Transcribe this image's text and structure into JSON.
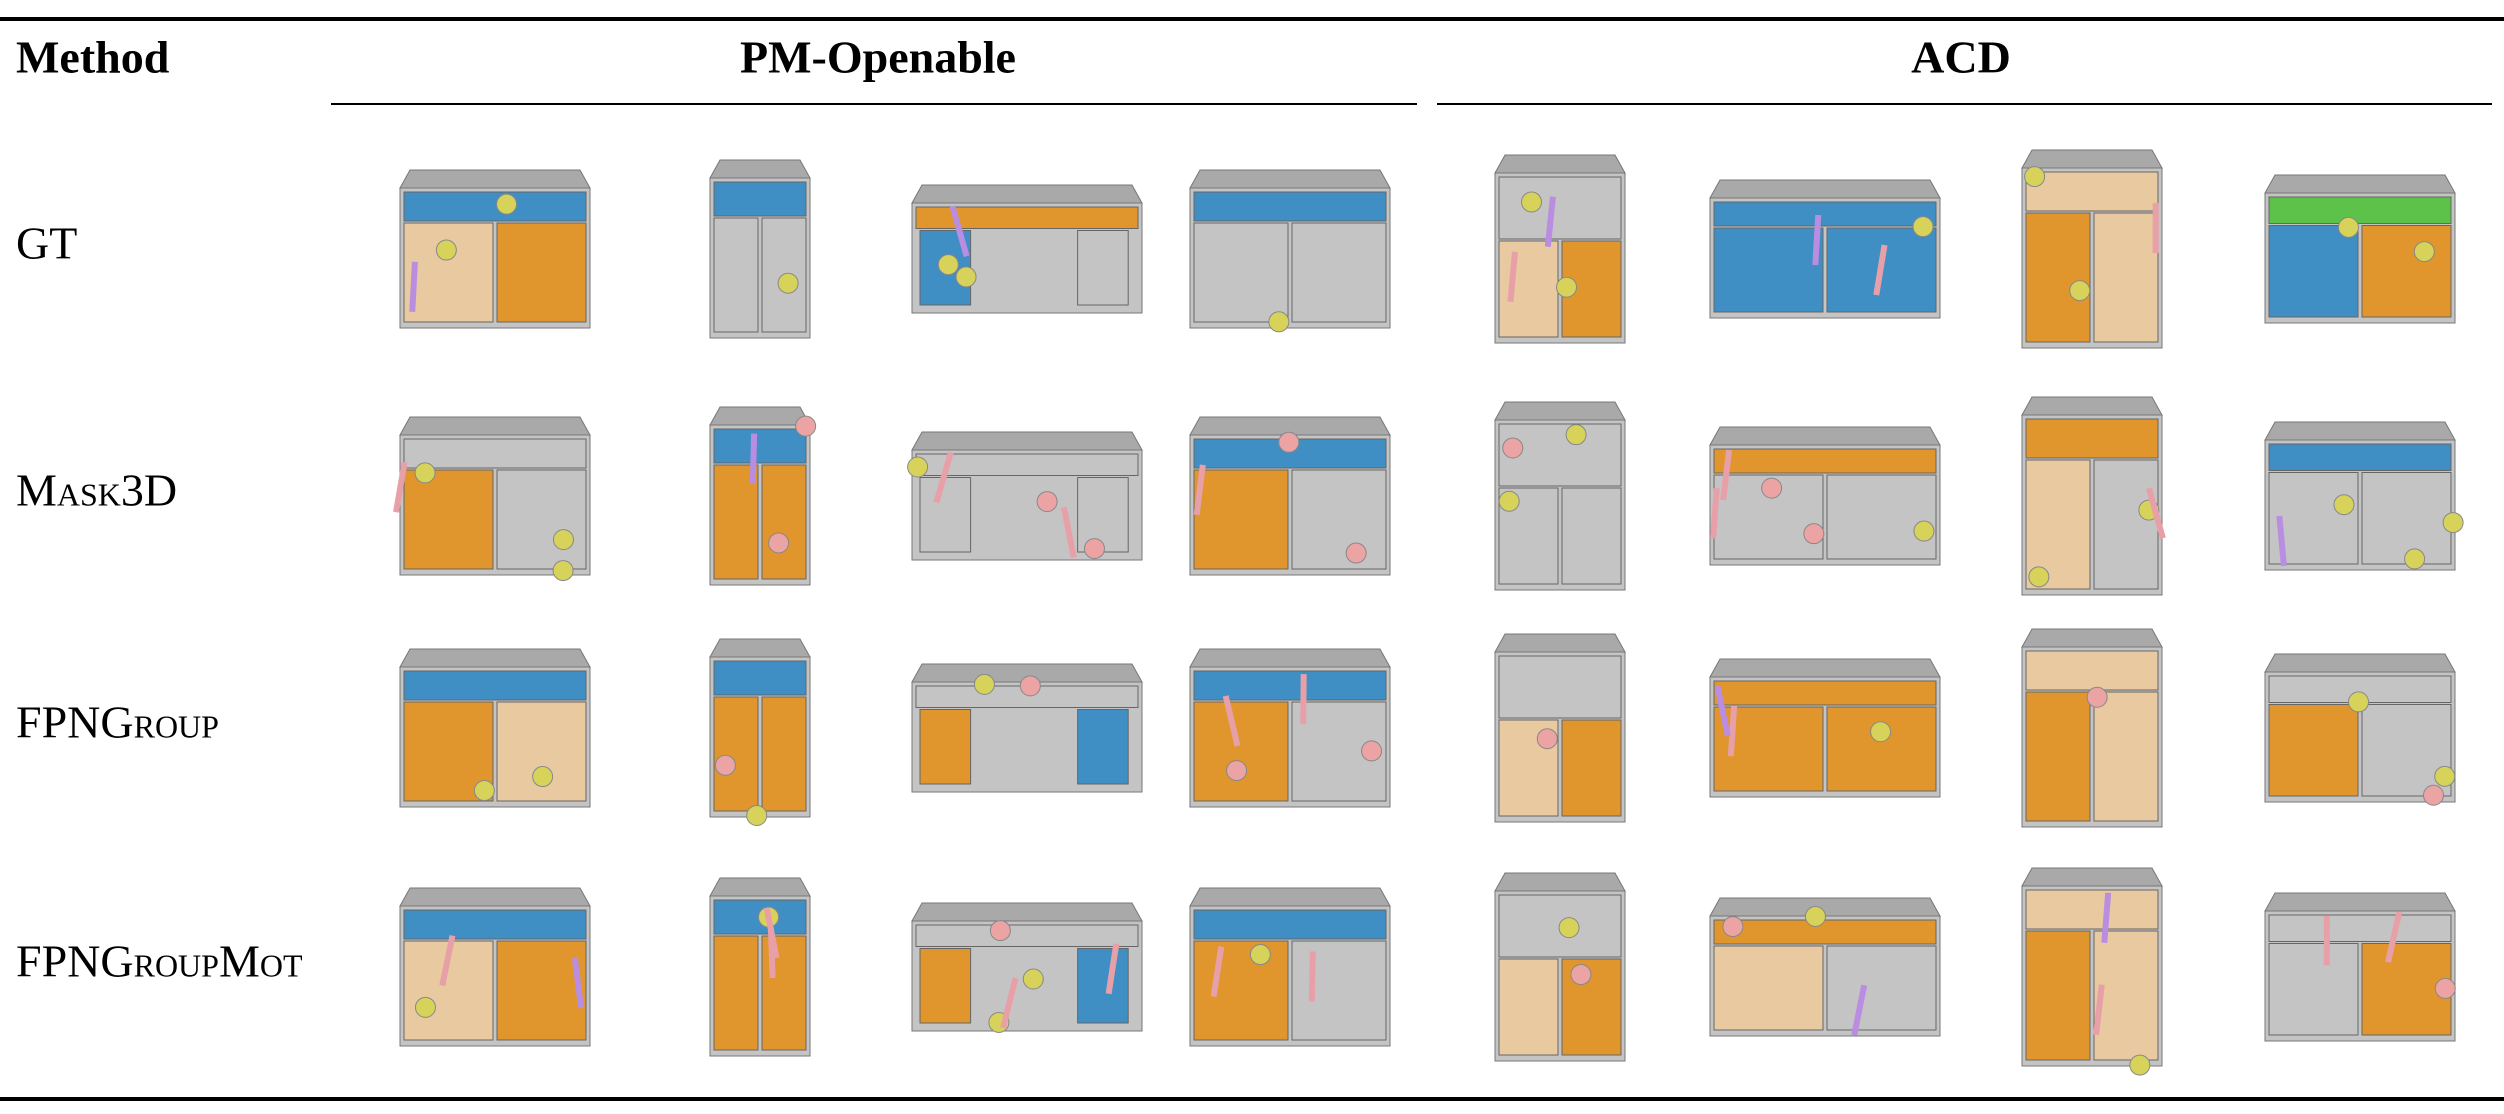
{
  "header": {
    "method": "Method",
    "groups": [
      "PM-Openable",
      "ACD"
    ]
  },
  "rows": [
    {
      "label": "GT"
    },
    {
      "label": "Mask3D"
    },
    {
      "label": "FPNGroup"
    },
    {
      "label": "FPNGroupMot"
    }
  ]
}
